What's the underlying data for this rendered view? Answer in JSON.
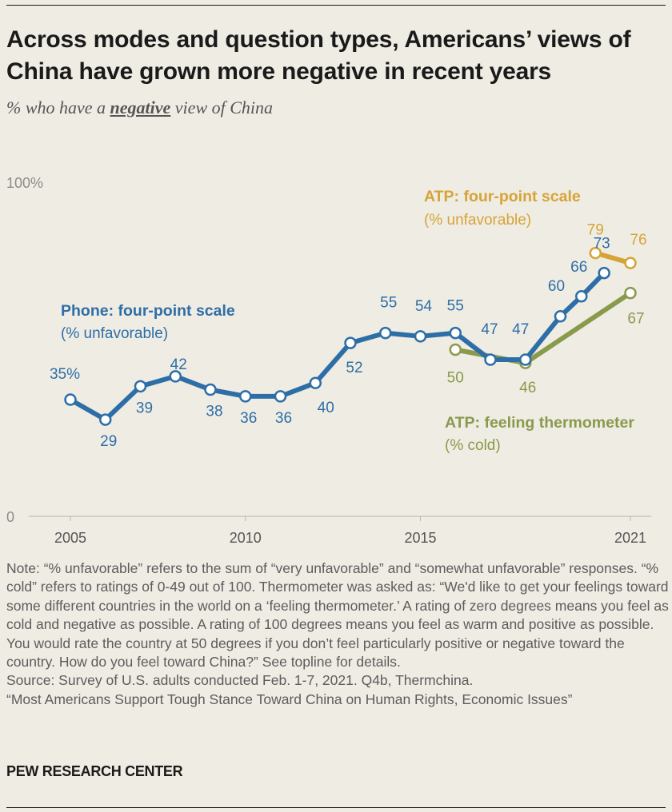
{
  "header": {
    "title": "Across modes and question types, Americans’ views of China have grown more negative in recent years",
    "subtitle_pre": "% who have a ",
    "subtitle_emph": "negative",
    "subtitle_post": " view of China"
  },
  "chart_data": {
    "type": "line",
    "ylim": [
      0,
      100
    ],
    "y_tick_labels": [
      {
        "value": 100,
        "label": "100%"
      },
      {
        "value": 0,
        "label": "0"
      }
    ],
    "xlim": [
      2005,
      2021
    ],
    "x_tick_labels": [
      "2005",
      "2010",
      "2015",
      "2021"
    ],
    "x_tick_values": [
      2005,
      2010,
      2015,
      2021
    ],
    "grid": false,
    "series": [
      {
        "key": "phone",
        "name": "Phone: four-point scale",
        "sublabel": "(% unfavorable)",
        "color": "#2e6ea6",
        "x": [
          2005.0,
          2006.0,
          2007.0,
          2008.0,
          2009.0,
          2010.0,
          2011.0,
          2012.0,
          2013.0,
          2014.0,
          2015.0,
          2016.0,
          2017.0,
          2018.0,
          2019.0,
          2019.6,
          2020.25
        ],
        "values": [
          35,
          29,
          39,
          42,
          38,
          36,
          36,
          40,
          52,
          55,
          54,
          55,
          47,
          47,
          60,
          66,
          73
        ],
        "labels": [
          "35%",
          "29",
          "39",
          "42",
          "38",
          "36",
          "36",
          "40",
          "52",
          "55",
          "54",
          "55",
          "47",
          "47",
          "60",
          "66",
          "73"
        ]
      },
      {
        "key": "thermometer",
        "name": "ATP: feeling thermometer",
        "sublabel": "(% cold)",
        "color": "#8a9a4b",
        "x": [
          2016.0,
          2018.0,
          2021.0
        ],
        "values": [
          50,
          46,
          67
        ],
        "labels": [
          "50",
          "46",
          "67"
        ]
      },
      {
        "key": "atp_fourpoint",
        "name": "ATP: four-point scale",
        "sublabel": "(% unfavorable)",
        "color": "#d6a436",
        "x": [
          2020.0,
          2021.0
        ],
        "values": [
          79,
          76
        ],
        "labels": [
          "79",
          "76"
        ]
      }
    ]
  },
  "notes": {
    "note": "Note: “% unfavorable” refers to the sum of “very unfavorable” and “somewhat unfavorable” responses. “% cold” refers to ratings of 0-49 out of 100. Thermometer was asked as: “We'd like to get your feelings toward some different countries in the world on a ‘feeling thermometer.’ A rating of zero degrees means you feel as cold and negative as possible. A rating of 100 degrees means you feel as warm and positive as possible. You would rate the country at 50 degrees if you don’t feel particularly positive or negative toward the country. How do you feel toward China?” See topline for details.",
    "source": "Source: Survey of U.S. adults conducted Feb. 1-7, 2021. Q4b, Thermchina.",
    "report": "“Most Americans Support Tough Stance Toward China on Human Rights, Economic Issues”"
  },
  "brand": "PEW RESEARCH CENTER"
}
